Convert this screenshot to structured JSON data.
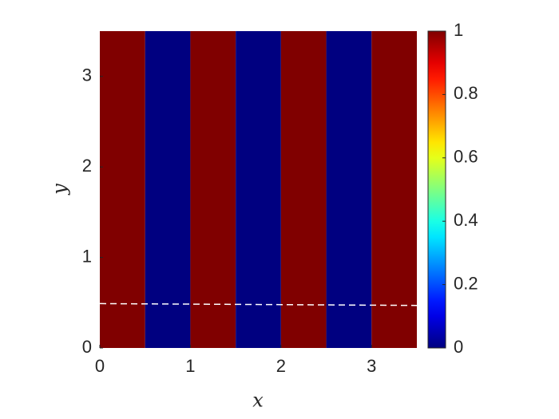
{
  "chart_data": {
    "type": "heatmap",
    "colormap": "jet",
    "x_edges": [
      0,
      0.5,
      1,
      1.5,
      2,
      2.5,
      3,
      3.5
    ],
    "values": [
      1,
      0,
      1,
      0,
      1,
      0,
      1
    ],
    "xlim": [
      0,
      3.5
    ],
    "ylim": [
      0,
      3.5
    ],
    "xticks": [
      0,
      1,
      2,
      3
    ],
    "yticks": [
      0,
      1,
      2,
      3
    ],
    "x_label": "x",
    "y_label": "y",
    "line": {
      "x": [
        0,
        3.5
      ],
      "y": [
        0.49,
        0.47
      ],
      "color": "#ffffff"
    },
    "colorbar": {
      "lim": [
        0,
        1
      ],
      "ticks": [
        0,
        0.2,
        0.4,
        0.6,
        0.8,
        1
      ]
    }
  }
}
